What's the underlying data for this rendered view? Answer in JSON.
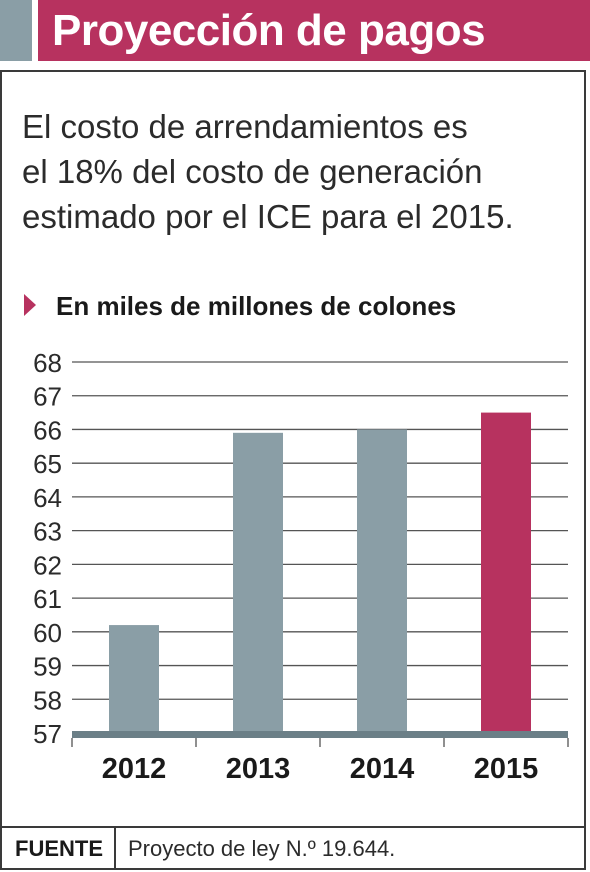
{
  "header": {
    "title": "Proyección de pagos"
  },
  "colors": {
    "accent_block": "#8a9ea6",
    "header_bg": "#b7325f",
    "bar_default": "#8a9ea6",
    "bar_highlight": "#b7325f",
    "baseline": "#6b7f87"
  },
  "description": {
    "lines": [
      "El costo de arrendamientos es",
      "el 18% del costo de generación",
      "estimado por el ICE para el 2015."
    ]
  },
  "chart_data": {
    "type": "bar",
    "title": "",
    "subtitle": "En miles de millones de colones",
    "xlabel": "",
    "ylabel": "",
    "categories": [
      "2012",
      "2013",
      "2014",
      "2015"
    ],
    "values": [
      60.2,
      65.9,
      66.0,
      66.5
    ],
    "highlight_category": "2015",
    "ylim": [
      57,
      68
    ],
    "yticks": [
      "57",
      "58",
      "59",
      "60",
      "61",
      "62",
      "63",
      "64",
      "65",
      "66",
      "67",
      "68"
    ],
    "grid": true
  },
  "footer": {
    "source_label": "FUENTE",
    "source_text": "Proyecto de ley N.º 19.644."
  }
}
